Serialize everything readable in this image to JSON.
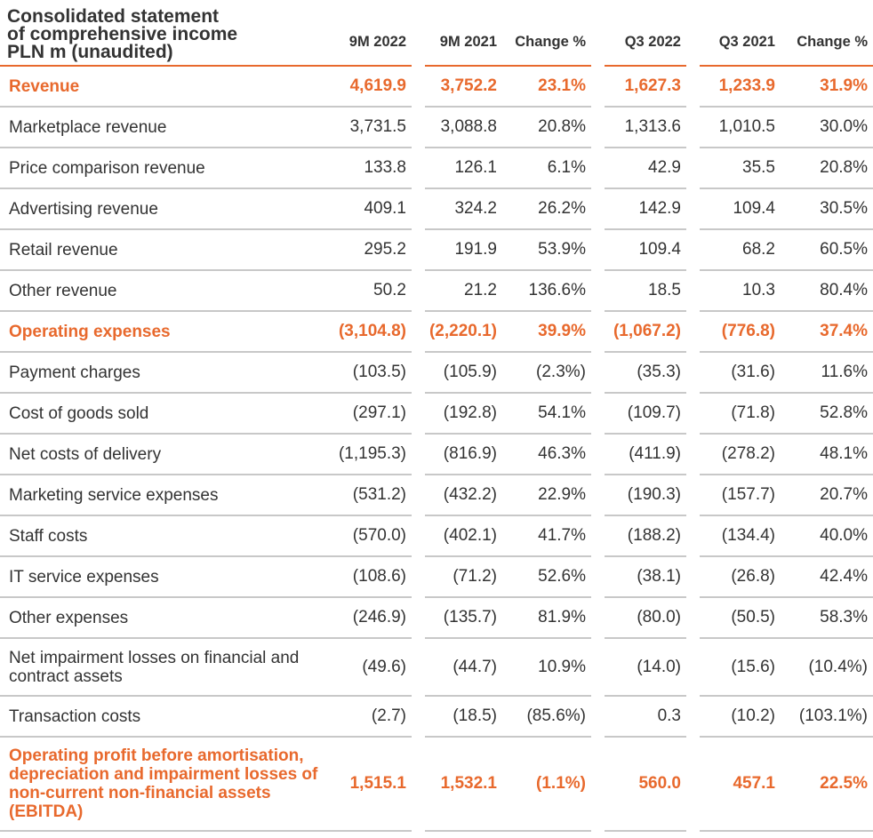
{
  "header": {
    "title": [
      "Consolidated statement",
      "of comprehensive income",
      "PLN m (unaudited)"
    ],
    "columns": [
      "9M 2022",
      "9M 2021",
      "Change %",
      "Q3 2022",
      "Q3 2021",
      "Change %"
    ]
  },
  "accent_color": "#e8692d",
  "rows": [
    {
      "label": "Revenue",
      "values": [
        "4,619.9",
        "3,752.2",
        "23.1%",
        "1,627.3",
        "1,233.9",
        "31.9%"
      ],
      "highlight": true
    },
    {
      "label": "Marketplace revenue",
      "values": [
        "3,731.5",
        "3,088.8",
        "20.8%",
        "1,313.6",
        "1,010.5",
        "30.0%"
      ]
    },
    {
      "label": "Price comparison revenue",
      "values": [
        "133.8",
        "126.1",
        "6.1%",
        "42.9",
        "35.5",
        "20.8%"
      ]
    },
    {
      "label": "Advertising revenue",
      "values": [
        "409.1",
        "324.2",
        "26.2%",
        "142.9",
        "109.4",
        "30.5%"
      ]
    },
    {
      "label": "Retail revenue",
      "values": [
        "295.2",
        "191.9",
        "53.9%",
        "109.4",
        "68.2",
        "60.5%"
      ]
    },
    {
      "label": "Other revenue",
      "values": [
        "50.2",
        "21.2",
        "136.6%",
        "18.5",
        "10.3",
        "80.4%"
      ]
    },
    {
      "label": "Operating expenses",
      "values": [
        "(3,104.8)",
        "(2,220.1)",
        "39.9%",
        "(1,067.2)",
        "(776.8)",
        "37.4%"
      ],
      "highlight": true
    },
    {
      "label": "Payment charges",
      "values": [
        "(103.5)",
        "(105.9)",
        "(2.3%)",
        "(35.3)",
        "(31.6)",
        "11.6%"
      ]
    },
    {
      "label": "Cost of goods sold",
      "values": [
        "(297.1)",
        "(192.8)",
        "54.1%",
        "(109.7)",
        "(71.8)",
        "52.8%"
      ]
    },
    {
      "label": "Net costs of delivery",
      "values": [
        "(1,195.3)",
        "(816.9)",
        "46.3%",
        "(411.9)",
        "(278.2)",
        "48.1%"
      ]
    },
    {
      "label": "Marketing service expenses",
      "values": [
        "(531.2)",
        "(432.2)",
        "22.9%",
        "(190.3)",
        "(157.7)",
        "20.7%"
      ]
    },
    {
      "label": "Staff costs",
      "values": [
        "(570.0)",
        "(402.1)",
        "41.7%",
        "(188.2)",
        "(134.4)",
        "40.0%"
      ]
    },
    {
      "label": "IT service expenses",
      "values": [
        "(108.6)",
        "(71.2)",
        "52.6%",
        "(38.1)",
        "(26.8)",
        "42.4%"
      ]
    },
    {
      "label": "Other expenses",
      "values": [
        "(246.9)",
        "(135.7)",
        "81.9%",
        "(80.0)",
        "(50.5)",
        "58.3%"
      ]
    },
    {
      "label": "Net impairment losses on financial and contract assets",
      "values": [
        "(49.6)",
        "(44.7)",
        "10.9%",
        "(14.0)",
        "(15.6)",
        "(10.4%)"
      ],
      "size": "tall"
    },
    {
      "label": "Transaction costs",
      "values": [
        "(2.7)",
        "(18.5)",
        "(85.6%)",
        "0.3",
        "(10.2)",
        "(103.1%)"
      ]
    },
    {
      "label": "Operating profit before amortisation, depreciation and impairment losses of non-current non-financial assets (EBITDA)",
      "values": [
        "1,515.1",
        "1,532.1",
        "(1.1%)",
        "560.0",
        "457.1",
        "22.5%"
      ],
      "highlight": true,
      "size": "xtall"
    }
  ]
}
